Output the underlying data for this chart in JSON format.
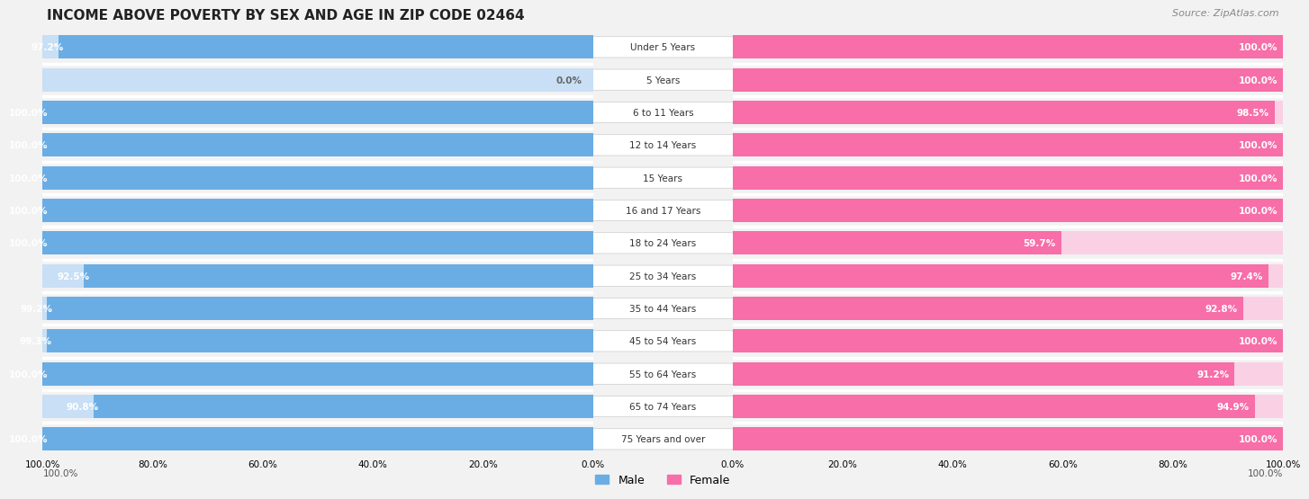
{
  "title": "INCOME ABOVE POVERTY BY SEX AND AGE IN ZIP CODE 02464",
  "source": "Source: ZipAtlas.com",
  "categories": [
    "Under 5 Years",
    "5 Years",
    "6 to 11 Years",
    "12 to 14 Years",
    "15 Years",
    "16 and 17 Years",
    "18 to 24 Years",
    "25 to 34 Years",
    "35 to 44 Years",
    "45 to 54 Years",
    "55 to 64 Years",
    "65 to 74 Years",
    "75 Years and over"
  ],
  "male_values": [
    97.2,
    0.0,
    100.0,
    100.0,
    100.0,
    100.0,
    100.0,
    92.5,
    99.2,
    99.3,
    100.0,
    90.8,
    100.0
  ],
  "female_values": [
    100.0,
    100.0,
    98.5,
    100.0,
    100.0,
    100.0,
    59.7,
    97.4,
    92.8,
    100.0,
    91.2,
    94.9,
    100.0
  ],
  "male_color": "#6aade4",
  "female_color": "#f76ea8",
  "male_label": "Male",
  "female_label": "Female",
  "bg_color": "#f2f2f2",
  "bar_bg_male": "#c8dff5",
  "bar_bg_female": "#fad0e4",
  "row_sep_color": "#ffffff",
  "label_color_white": "#ffffff",
  "label_color_dark": "#666666",
  "cat_label_color": "#333333",
  "title_fontsize": 11,
  "source_fontsize": 8,
  "label_fontsize": 7.5,
  "tick_fontsize": 7.5,
  "cat_fontsize": 7.5
}
